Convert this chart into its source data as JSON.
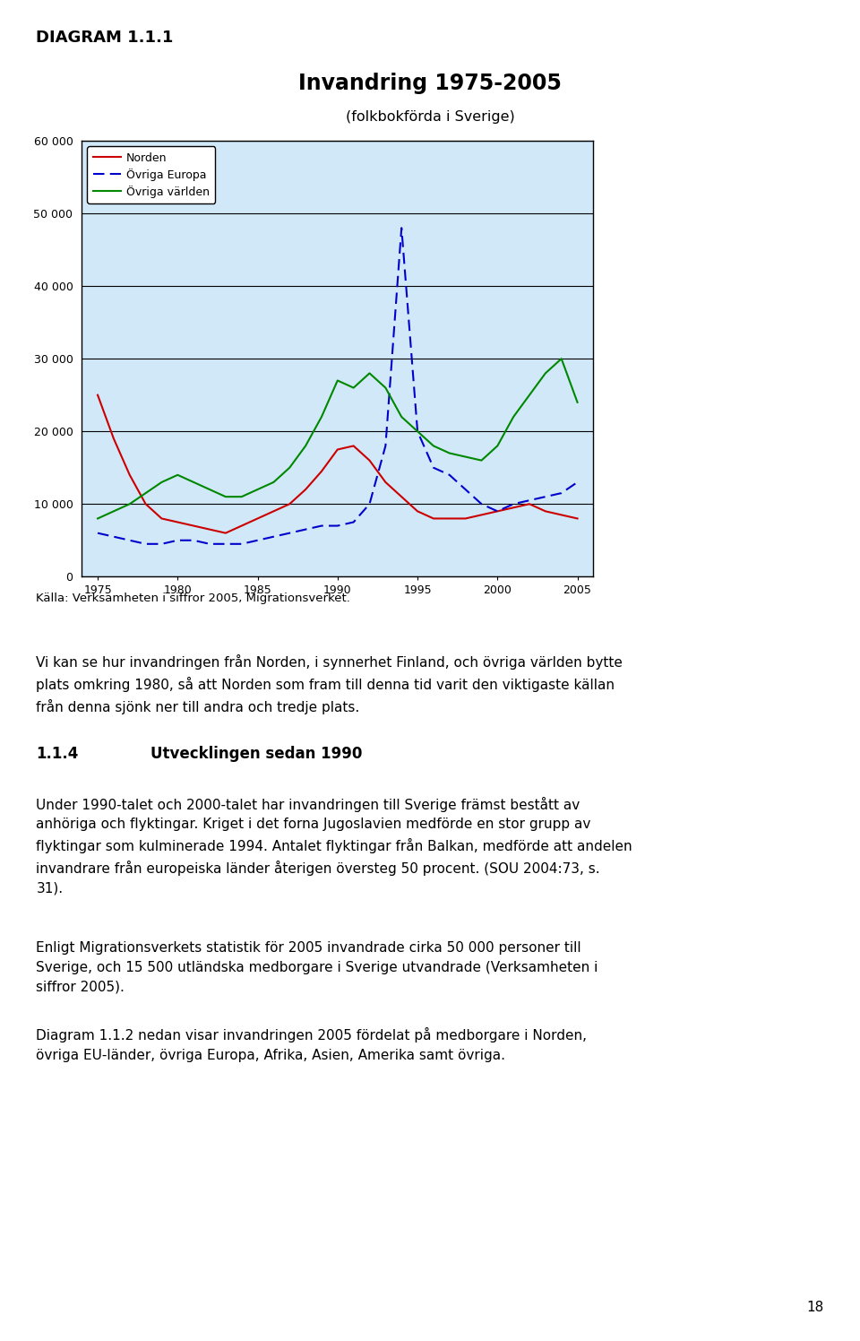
{
  "diagram_label": "DIAGRAM 1.1.1",
  "chart_title": "Invandring 1975-2005",
  "chart_subtitle": "(folkbokförda i Sverige)",
  "source_text": "Källa: Verksamheten i siffror 2005, Migrationsverket.",
  "body1_line1": "Vi kan se hur invandringen från Norden, i synnerhet Finland, och övriga världen bytte",
  "body1_line2": "plats omkring 1980, så att Norden som fram till denna tid varit den viktigaste källan",
  "body1_line3": "från denna sjönk ner till andra och tredje plats.",
  "section_num": "1.1.4",
  "section_title": "Utvecklingen sedan 1990",
  "body2_line1": "Under 1990-talet och 2000-talet har invandringen till Sverige främst bestått av",
  "body2_line2": "anhöriga och flyktingar. Kriget i det forna Jugoslavien medförde en stor grupp av",
  "body2_line3": "flyktingar som kulminerade 1994. Antalet flyktingar från Balkan, medförde att andelen",
  "body2_line4": "invandrare från europeiska länder återigen översteg 50 procent. (SOU 2004:73, s.",
  "body2_line5": "31).",
  "body3_line1": "Enligt Migrationsverkets statistik för 2005 invandrade cirka 50 000 personer till",
  "body3_line2": "Sverige, och 15 500 utländska medborgare i Sverige utvandrade (Verksamheten i",
  "body3_line3": "siffror 2005).",
  "body4_line1": "Diagram 1.1.2 nedan visar invandringen 2005 fördelat på medborgare i Norden,",
  "body4_line2": "övriga EU-länder, övriga Europa, Afrika, Asien, Amerika samt övriga.",
  "page_number": "18",
  "years": [
    1975,
    1976,
    1977,
    1978,
    1979,
    1980,
    1981,
    1982,
    1983,
    1984,
    1985,
    1986,
    1987,
    1988,
    1989,
    1990,
    1991,
    1992,
    1993,
    1994,
    1995,
    1996,
    1997,
    1998,
    1999,
    2000,
    2001,
    2002,
    2003,
    2004,
    2005
  ],
  "norden": [
    25000,
    19000,
    14000,
    10000,
    8000,
    7500,
    7000,
    6500,
    6000,
    7000,
    8000,
    9000,
    10000,
    12000,
    14500,
    17500,
    18000,
    16000,
    13000,
    11000,
    9000,
    8000,
    8000,
    8000,
    8500,
    9000,
    9500,
    10000,
    9000,
    8500,
    8000
  ],
  "ovriga_europa": [
    6000,
    5500,
    5000,
    4500,
    4500,
    5000,
    5000,
    4500,
    4500,
    4500,
    5000,
    5500,
    6000,
    6500,
    7000,
    7000,
    7500,
    10000,
    18000,
    48000,
    20000,
    15000,
    14000,
    12000,
    10000,
    9000,
    10000,
    10500,
    11000,
    11500,
    13000
  ],
  "ovriga_varlden": [
    8000,
    9000,
    10000,
    11500,
    13000,
    14000,
    13000,
    12000,
    11000,
    11000,
    12000,
    13000,
    15000,
    18000,
    22000,
    27000,
    26000,
    28000,
    26000,
    22000,
    20000,
    18000,
    17000,
    16500,
    16000,
    18000,
    22000,
    25000,
    28000,
    30000,
    24000
  ],
  "norden_color": "#cc0000",
  "ovriga_europa_color": "#0000cc",
  "ovriga_varlden_color": "#008800",
  "bg_color": "#d0e8f8",
  "ylim": [
    0,
    60000
  ],
  "yticks": [
    0,
    10000,
    20000,
    30000,
    40000,
    50000,
    60000
  ],
  "ytick_labels": [
    "0",
    "10 000",
    "20 000",
    "30 000",
    "40 000",
    "50 000",
    "60 000"
  ],
  "xticks": [
    1975,
    1980,
    1985,
    1990,
    1995,
    2000,
    2005
  ],
  "legend_norden": "Norden",
  "legend_ovriga_europa": "Övriga Europa",
  "legend_ovriga_varlden": "Övriga världen"
}
